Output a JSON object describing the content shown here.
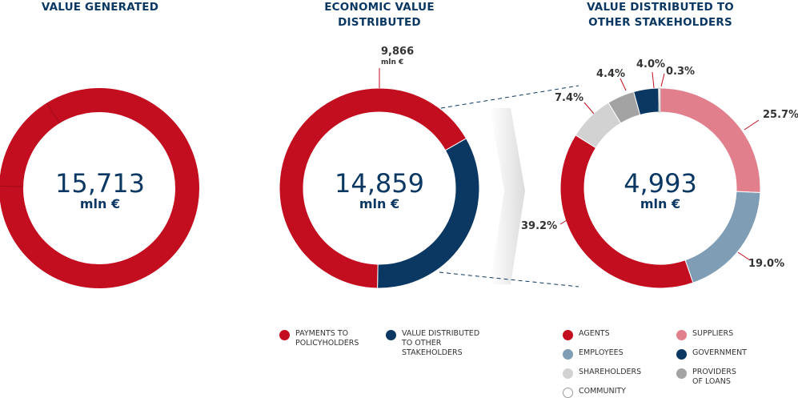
{
  "chart_data": [
    {
      "type": "pie",
      "title": "VALUE GENERATED",
      "total": "15,713",
      "unit": "mln €",
      "color": "#c20e1f",
      "slices": [
        {
          "name": "",
          "value": 100
        }
      ]
    },
    {
      "type": "pie",
      "title": "ECONOMIC VALUE DISTRIBUTED",
      "total": "14,859",
      "unit": "mln €",
      "annotations": [
        {
          "value": "9,866",
          "unit": "mln €"
        }
      ],
      "slices": [
        {
          "name": "PAYMENTS TO POLICYHOLDERS",
          "value": 9866,
          "color": "#c20e1f"
        },
        {
          "name": "VALUE DISTRIBUTED TO OTHER STAKEHOLDERS",
          "value": 4993,
          "color": "#0b3863"
        }
      ],
      "legend": [
        {
          "label": "PAYMENTS TO POLICYHOLDERS",
          "color": "#c20e1f"
        },
        {
          "label": "VALUE DISTRIBUTED TO OTHER STAKEHOLDERS",
          "color": "#0b3863"
        }
      ]
    },
    {
      "type": "pie",
      "title": "VALUE DISTRIBUTED TO OTHER STAKEHOLDERS",
      "total": "4,993",
      "unit": "mln €",
      "slices": [
        {
          "name": "SUPPLIERS",
          "value": 25.7,
          "label": "25.7%",
          "color": "#e17f8d"
        },
        {
          "name": "EMPLOYEES",
          "value": 19.0,
          "label": "19.0%",
          "color": "#7f9db5"
        },
        {
          "name": "AGENTS",
          "value": 39.2,
          "label": "39.2%",
          "color": "#c20e1f"
        },
        {
          "name": "SHAREHOLDERS",
          "value": 7.4,
          "label": "7.4%",
          "color": "#d2d2d2"
        },
        {
          "name": "PROVIDERS OF LOANS",
          "value": 4.4,
          "label": "4.4%",
          "color": "#a3a3a3"
        },
        {
          "name": "GOVERNMENT",
          "value": 4.0,
          "label": "4.0%",
          "color": "#0b3863"
        },
        {
          "name": "COMMUNITY",
          "value": 0.3,
          "label": "0.3%",
          "color": "#ffffff"
        }
      ],
      "legend": [
        {
          "label": "AGENTS",
          "color": "#c20e1f"
        },
        {
          "label": "SUPPLIERS",
          "color": "#e17f8d"
        },
        {
          "label": "EMPLOYEES",
          "color": "#7f9db5"
        },
        {
          "label": "GOVERNMENT",
          "color": "#0b3863"
        },
        {
          "label": "SHAREHOLDERS",
          "color": "#d2d2d2"
        },
        {
          "label": "PROVIDERS OF LOANS",
          "color": "#a3a3a3"
        },
        {
          "label": "COMMUNITY",
          "color": "#ffffff"
        }
      ]
    }
  ]
}
